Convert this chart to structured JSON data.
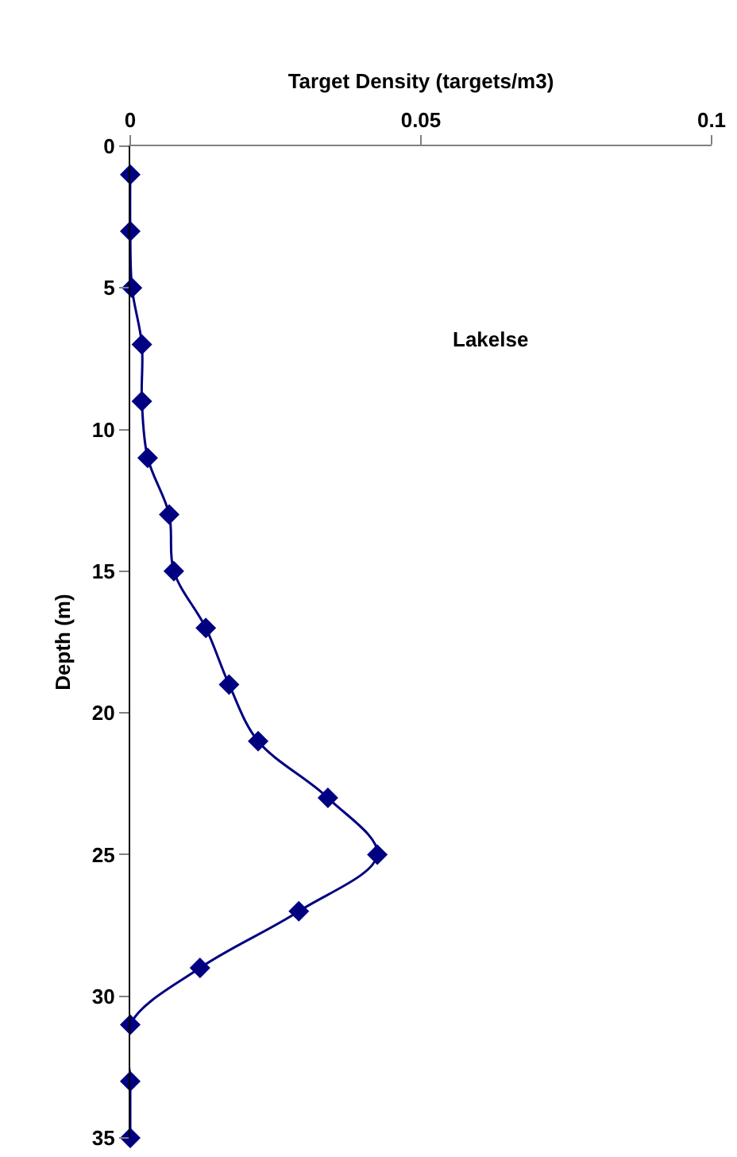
{
  "chart_data": {
    "type": "line",
    "xlabel": "Target Density (targets/m3)",
    "ylabel": "Depth (m)",
    "annotations": [
      "Lakelse"
    ],
    "series": [
      {
        "color": "#000080",
        "x": [
          0,
          0,
          0.0003,
          0.002,
          0.002,
          0.003,
          0.0067,
          0.0075,
          0.013,
          0.017,
          0.022,
          0.034,
          0.0425,
          0.029,
          0.012,
          0,
          0,
          0
        ],
        "values": [
          1,
          3,
          5,
          7,
          9,
          11,
          13,
          15,
          17,
          19,
          21,
          23,
          25,
          27,
          29,
          31,
          33,
          35
        ]
      }
    ],
    "xlim": [
      0,
      0.1
    ],
    "xticks": [
      0,
      0.05,
      0.1
    ],
    "ylim": [
      35,
      0
    ],
    "yticks": [
      0,
      5,
      10,
      15,
      20,
      25,
      30,
      35
    ],
    "grid": false,
    "marker": "diamond",
    "line_style": "solid"
  }
}
